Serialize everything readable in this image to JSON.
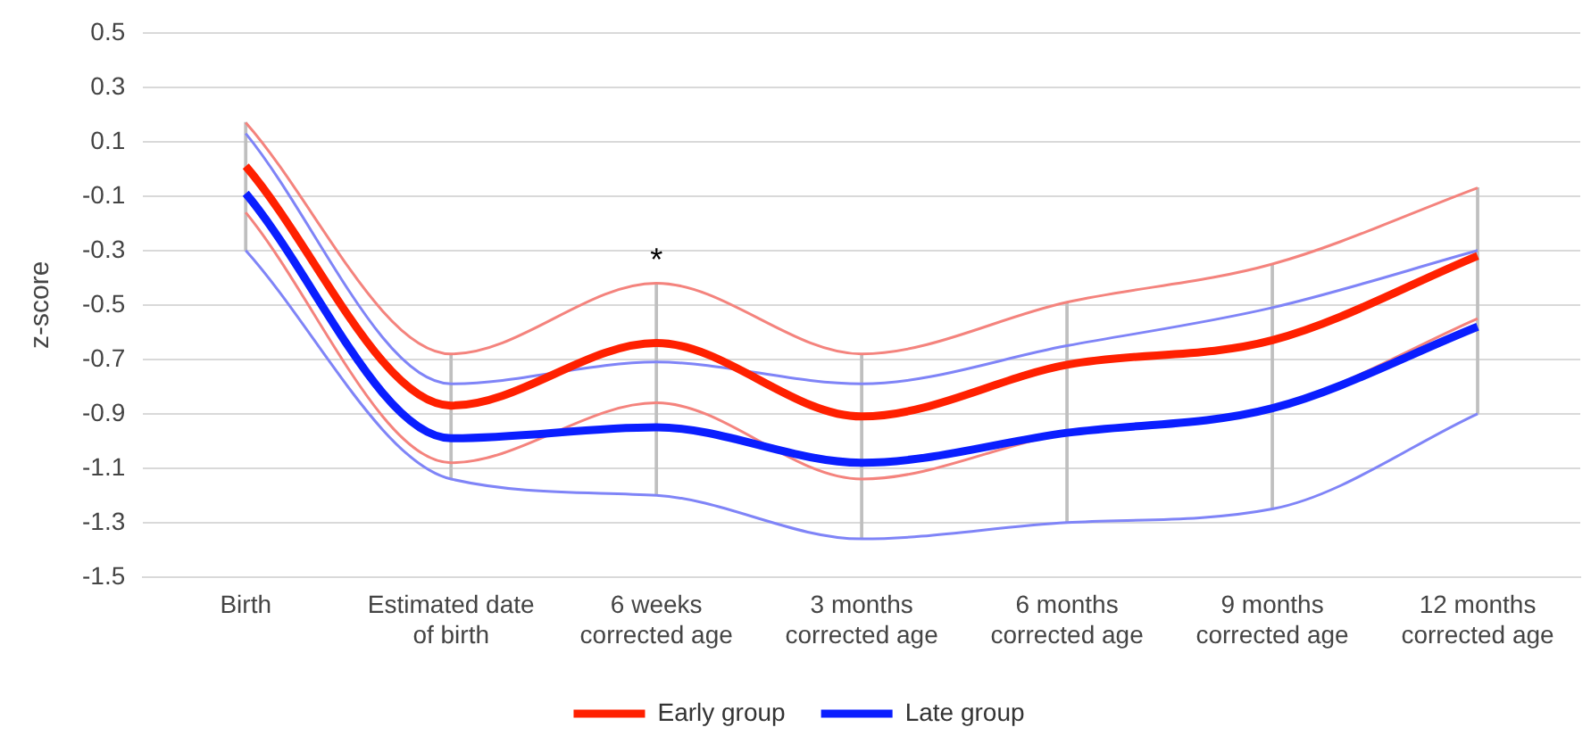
{
  "chart_data": {
    "type": "line",
    "ylabel": "z-score",
    "categories": [
      "Birth",
      "Estimated date of birth",
      "6 weeks corrected age",
      "3 months corrected age",
      "6 months corrected age",
      "9 months corrected age",
      "12 months corrected age"
    ],
    "series": [
      {
        "type": "bar",
        "color": "#bfbfbf",
        "base": [
          -0.3,
          -1.14,
          -1.2,
          -1.36,
          -1.3,
          -1.25,
          -0.9
        ],
        "values": [
          0.47,
          0.46,
          0.78,
          0.68,
          0.81,
          0.9,
          0.83
        ]
      },
      {
        "color": "#f4837d",
        "values": [
          0.17,
          -0.68,
          -0.42,
          -0.68,
          -0.49,
          -0.35,
          -0.07
        ]
      },
      {
        "color": "#f4837d",
        "values": [
          -0.16,
          -1.08,
          -0.86,
          -1.14,
          -0.97,
          -0.88,
          -0.55
        ]
      },
      {
        "color": "#7f84f7",
        "values": [
          0.13,
          -0.79,
          -0.71,
          -0.79,
          -0.65,
          -0.51,
          -0.3
        ]
      },
      {
        "color": "#7f84f7",
        "values": [
          -0.3,
          -1.14,
          -1.2,
          -1.36,
          -1.3,
          -1.25,
          -0.9
        ]
      },
      {
        "name": "Early group",
        "color": "#ff2000",
        "values": [
          0.01,
          -0.87,
          -0.64,
          -0.91,
          -0.72,
          -0.63,
          -0.32
        ]
      },
      {
        "name": "Late group",
        "color": "#0a1eff",
        "values": [
          -0.09,
          -0.99,
          -0.95,
          -1.08,
          -0.97,
          -0.88,
          -0.58
        ]
      }
    ],
    "ylim": [
      -1.5,
      0.5
    ],
    "yticks": [
      -1.5,
      -1.3,
      -1.1,
      -0.9,
      -0.7,
      -0.5,
      -0.3,
      -0.1,
      0.1,
      0.3,
      0.5
    ],
    "grid": "y",
    "legend": "bottom",
    "marker": "none",
    "line_style": "solid",
    "annotations": [
      {
        "text": "*",
        "x": "6 weeks corrected age",
        "y": -0.42
      }
    ]
  }
}
